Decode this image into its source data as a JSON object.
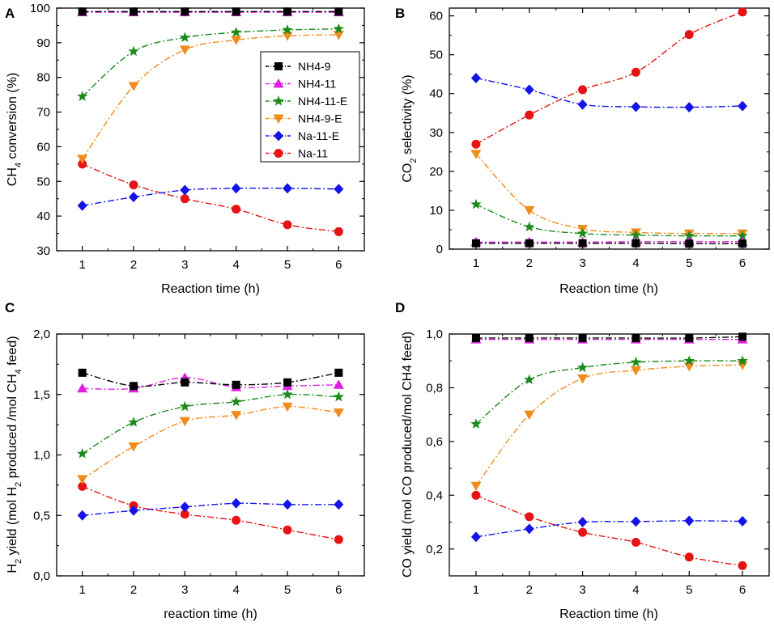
{
  "chart_data": [
    {
      "type": "line",
      "panel": "A",
      "title": "",
      "xlabel": "Reaction time (h)",
      "ylabel": "CH4 conversion (%)",
      "ylabel_parts": [
        "CH",
        "4",
        " conversion (%)"
      ],
      "x": [
        1,
        2,
        3,
        4,
        5,
        6
      ],
      "xlim": [
        0.5,
        6.5
      ],
      "ylim": [
        30,
        100
      ],
      "xticks": [
        "1",
        "2",
        "3",
        "4",
        "5",
        "6"
      ],
      "yticks": [
        "30",
        "40",
        "50",
        "60",
        "70",
        "80",
        "90",
        "100"
      ],
      "ytick_values": [
        30,
        40,
        50,
        60,
        70,
        80,
        90,
        100
      ],
      "legend": "top-right-inside",
      "series": [
        {
          "name": "NH4-9",
          "values": [
            99,
            99,
            99,
            99,
            99,
            99
          ]
        },
        {
          "name": "NH4-11",
          "values": [
            98.8,
            98.8,
            98.8,
            98.8,
            98.8,
            98.8
          ]
        },
        {
          "name": "NH4-11-E",
          "values": [
            74.5,
            87.5,
            91.5,
            93,
            93.7,
            94
          ]
        },
        {
          "name": "NH4-9-E",
          "values": [
            56.5,
            77.5,
            88,
            90.8,
            92,
            92.3
          ]
        },
        {
          "name": "Na-11-E",
          "values": [
            43,
            45.5,
            47.5,
            48,
            48,
            47.8
          ]
        },
        {
          "name": "Na-11",
          "values": [
            55,
            49,
            45,
            42,
            37.5,
            35.5
          ]
        }
      ]
    },
    {
      "type": "line",
      "panel": "B",
      "title": "",
      "xlabel": "Reaction time (h)",
      "ylabel": "CO2 selectivity (%)",
      "ylabel_parts": [
        "CO",
        "2",
        " selectivity (%)"
      ],
      "x": [
        1,
        2,
        3,
        4,
        5,
        6
      ],
      "xlim": [
        0.5,
        6.5
      ],
      "ylim": [
        0,
        62
      ],
      "xticks": [
        "1",
        "2",
        "3",
        "4",
        "5",
        "6"
      ],
      "yticks": [
        "0",
        "10",
        "20",
        "30",
        "40",
        "50",
        "60"
      ],
      "ytick_values": [
        0,
        10,
        20,
        30,
        40,
        50,
        60
      ],
      "series": [
        {
          "name": "NH4-9",
          "values": [
            1.5,
            1.5,
            1.5,
            1.5,
            1.4,
            1.4
          ]
        },
        {
          "name": "NH4-11",
          "values": [
            1.8,
            1.8,
            1.8,
            1.9,
            1.9,
            1.9
          ]
        },
        {
          "name": "NH4-11-E",
          "values": [
            11.5,
            5.7,
            4,
            3.6,
            3.4,
            3.4
          ]
        },
        {
          "name": "NH4-9-E",
          "values": [
            24.5,
            10,
            5.2,
            4.3,
            4,
            4
          ]
        },
        {
          "name": "Na-11-E",
          "values": [
            44,
            41,
            37.2,
            36.6,
            36.5,
            36.8
          ]
        },
        {
          "name": "Na-11",
          "values": [
            27,
            34.5,
            41,
            45.5,
            55.2,
            61
          ]
        }
      ]
    },
    {
      "type": "line",
      "panel": "C",
      "title": "",
      "xlabel": "reaction time (h)",
      "ylabel": "H2 yield (mol H2 produced /mol CH4 feed)",
      "ylabel_parts": [
        "H",
        "2",
        " yield (mol H",
        "2",
        " produced /mol CH",
        "4",
        " feed)"
      ],
      "x": [
        1,
        2,
        3,
        4,
        5,
        6
      ],
      "xlim": [
        0.5,
        6.5
      ],
      "ylim": [
        0,
        2
      ],
      "xticks": [
        "1",
        "2",
        "3",
        "4",
        "5",
        "6"
      ],
      "yticks": [
        "0,0",
        "0,5",
        "1,0",
        "1,5",
        "2,0"
      ],
      "ytick_values": [
        0,
        0.5,
        1,
        1.5,
        2
      ],
      "series": [
        {
          "name": "NH4-9",
          "values": [
            1.68,
            1.57,
            1.6,
            1.58,
            1.6,
            1.68
          ]
        },
        {
          "name": "NH4-11",
          "values": [
            1.55,
            1.55,
            1.64,
            1.56,
            1.57,
            1.58
          ]
        },
        {
          "name": "NH4-11-E",
          "values": [
            1.01,
            1.27,
            1.4,
            1.44,
            1.5,
            1.48
          ]
        },
        {
          "name": "NH4-9-E",
          "values": [
            0.8,
            1.07,
            1.28,
            1.33,
            1.4,
            1.35
          ]
        },
        {
          "name": "Na-11-E",
          "values": [
            0.5,
            0.54,
            0.57,
            0.6,
            0.59,
            0.59
          ]
        },
        {
          "name": "Na-11",
          "values": [
            0.74,
            0.58,
            0.51,
            0.46,
            0.38,
            0.3
          ]
        }
      ]
    },
    {
      "type": "line",
      "panel": "D",
      "title": "",
      "xlabel": "Reaction time (h)",
      "ylabel": "CO yield (mol CO produced/mol CH4 feed)",
      "ylabel_parts": [
        "CO yield (mol CO produced/mol CH4 feed)"
      ],
      "x": [
        1,
        2,
        3,
        4,
        5,
        6
      ],
      "xlim": [
        0.5,
        6.5
      ],
      "ylim": [
        0.1,
        1.0
      ],
      "xticks": [
        "1",
        "2",
        "3",
        "4",
        "5",
        "6"
      ],
      "yticks": [
        "0,2",
        "0,4",
        "0,6",
        "0,8",
        "1,0"
      ],
      "ytick_values": [
        0.2,
        0.4,
        0.6,
        0.8,
        1.0
      ],
      "series": [
        {
          "name": "NH4-9",
          "values": [
            0.985,
            0.985,
            0.985,
            0.985,
            0.985,
            0.99
          ]
        },
        {
          "name": "NH4-11",
          "values": [
            0.98,
            0.98,
            0.98,
            0.98,
            0.98,
            0.98
          ]
        },
        {
          "name": "NH4-11-E",
          "values": [
            0.665,
            0.83,
            0.875,
            0.895,
            0.9,
            0.9
          ]
        },
        {
          "name": "NH4-9-E",
          "values": [
            0.435,
            0.7,
            0.835,
            0.865,
            0.88,
            0.885
          ]
        },
        {
          "name": "Na-11-E",
          "values": [
            0.245,
            0.275,
            0.3,
            0.302,
            0.305,
            0.303
          ]
        },
        {
          "name": "Na-11",
          "values": [
            0.4,
            0.32,
            0.262,
            0.225,
            0.17,
            0.138
          ]
        }
      ]
    }
  ],
  "series_styles": [
    {
      "name": "NH4-9",
      "color": "#000000",
      "marker": "square"
    },
    {
      "name": "NH4-11",
      "color": "#e020e0",
      "marker": "triangle-up"
    },
    {
      "name": "NH4-11-E",
      "color": "#1a8a1a",
      "marker": "star"
    },
    {
      "name": "NH4-9-E",
      "color": "#f08c1c",
      "marker": "triangle-down"
    },
    {
      "name": "Na-11-E",
      "color": "#1414e6",
      "marker": "diamond"
    },
    {
      "name": "Na-11",
      "color": "#e61414",
      "marker": "circle"
    }
  ]
}
